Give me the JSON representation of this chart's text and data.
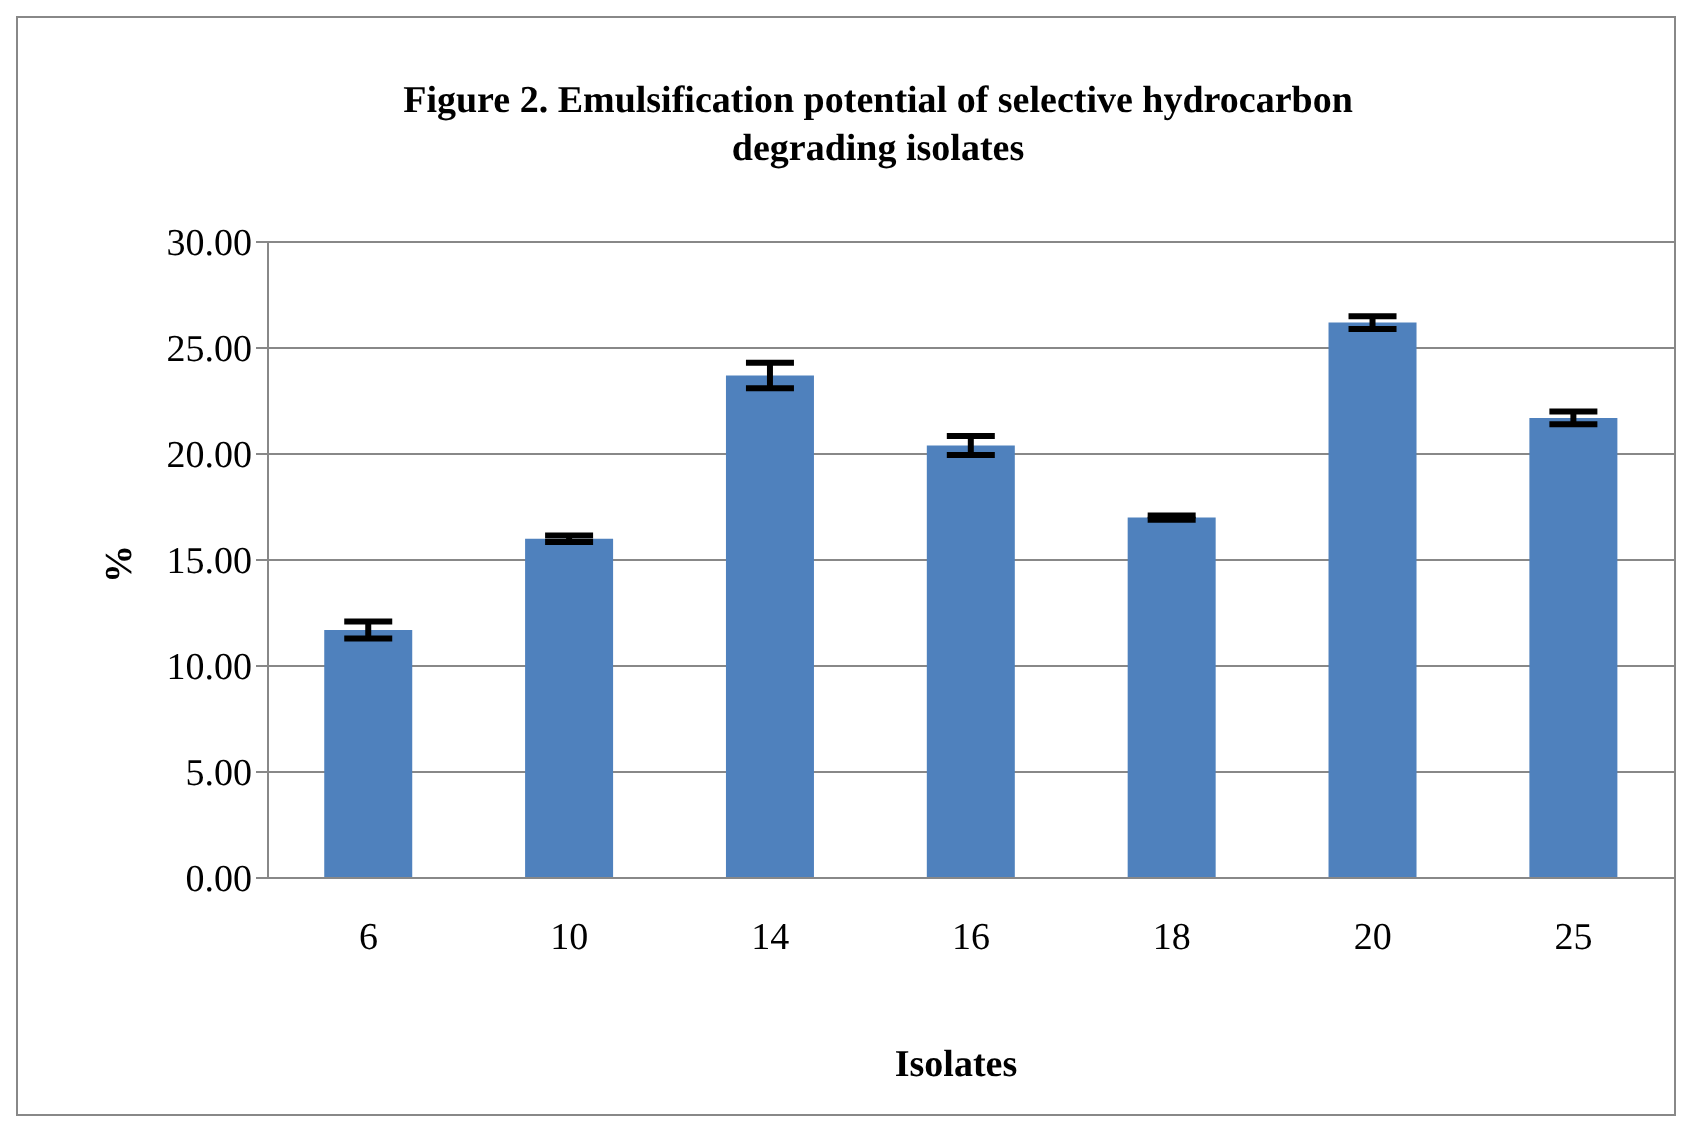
{
  "chart_data": {
    "type": "bar",
    "title": "Figure 2. Emulsification potential of selective hydrocarbon degrading isolates",
    "xlabel": "Isolates",
    "ylabel": "%",
    "categories": [
      "6",
      "10",
      "14",
      "16",
      "18",
      "20",
      "25"
    ],
    "values": [
      11.7,
      16.0,
      23.7,
      20.4,
      17.0,
      26.2,
      21.7
    ],
    "errors": [
      0.4,
      0.15,
      0.6,
      0.45,
      0.1,
      0.3,
      0.3
    ],
    "color": "#4f81bd",
    "ylim": [
      0,
      30
    ],
    "yticks": [
      {
        "value": 0,
        "label": "0.00"
      },
      {
        "value": 5,
        "label": "5.00"
      },
      {
        "value": 10,
        "label": "10.00"
      },
      {
        "value": 15,
        "label": "15.00"
      },
      {
        "value": 20,
        "label": "20.00"
      },
      {
        "value": 25,
        "label": "25.00"
      },
      {
        "value": 30,
        "label": "30.00"
      }
    ],
    "grid": "y",
    "legend": false
  }
}
